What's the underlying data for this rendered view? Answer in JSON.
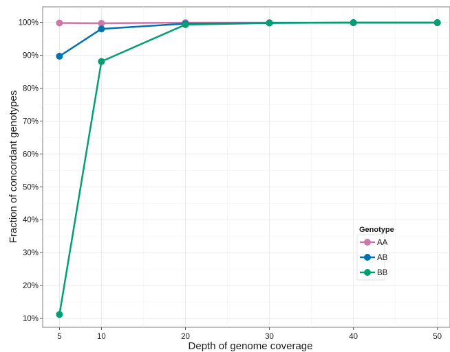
{
  "chart_data": {
    "type": "line",
    "title": "",
    "xlabel": "Depth of genome coverage",
    "ylabel": "Fraction of concordant genotypes",
    "x": [
      5,
      10,
      20,
      30,
      40,
      50
    ],
    "x_ticks": [
      5,
      10,
      20,
      30,
      40,
      50
    ],
    "xlim": [
      3,
      51.5
    ],
    "y_ticks": [
      10,
      20,
      30,
      40,
      50,
      60,
      70,
      80,
      90,
      100
    ],
    "y_tick_labels": [
      "10%",
      "20%",
      "30%",
      "40%",
      "50%",
      "60%",
      "70%",
      "80%",
      "90%",
      "100%"
    ],
    "ylim": [
      7.3,
      104.7
    ],
    "y_unit": "%",
    "grid": true,
    "legend": {
      "title": "Genotype",
      "position": "bottom-right"
    },
    "series": [
      {
        "name": "AA",
        "color": "#cc79a7",
        "values": [
          99.8,
          99.7,
          99.9,
          99.9,
          99.9,
          99.9
        ]
      },
      {
        "name": "AB",
        "color": "#0072b2",
        "values": [
          89.7,
          98.0,
          99.6,
          99.8,
          99.9,
          99.9
        ]
      },
      {
        "name": "BB",
        "color": "#009e73",
        "values": [
          11.2,
          88.1,
          99.3,
          99.8,
          99.9,
          99.9
        ]
      }
    ]
  }
}
